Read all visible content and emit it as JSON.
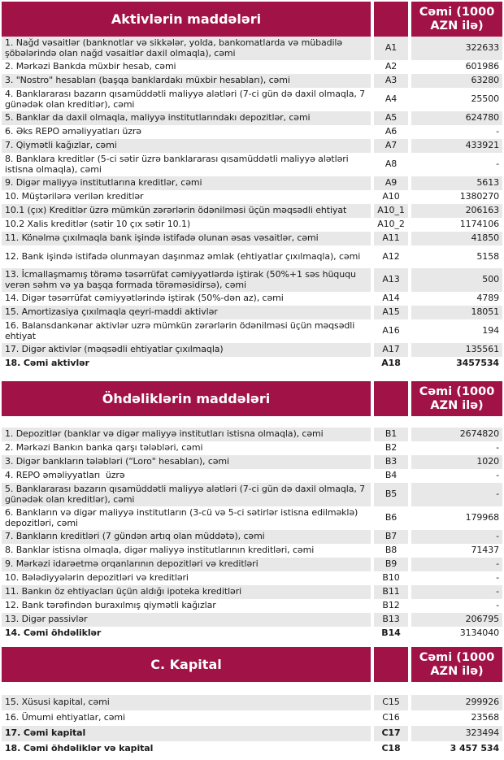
{
  "colors": {
    "header_bg": "#A11246",
    "stripe": "#E8E8E8",
    "header_text": "#FFFFFF"
  },
  "sections": [
    {
      "title": "Aktivlərin maddələri",
      "value_header": "Cəmi (1000 AZN ilə)",
      "rows": [
        {
          "label": "1. Nağd vəsaitlər (banknotlar və sikkələr, yolda, bankomatlarda və mübadilə şöbələrində olan nağd vəsaitlər daxil olmaqla), cəmi",
          "code": "A1",
          "value": "322633"
        },
        {
          "label": "2. Mərkəzi Bankda müxbir hesab, cəmi",
          "code": "A2",
          "value": "601986"
        },
        {
          "label": "3. \"Nostro\" hesabları (başqa banklardakı müxbir hesabları), cəmi",
          "code": "A3",
          "value": "63280"
        },
        {
          "label": "4. Banklararası bazarın qısamüddətli maliyyə alətləri (7-ci gün də daxil olmaqla, 7 günədək olan kreditlər), cəmi",
          "code": "A4",
          "value": "25500"
        },
        {
          "label": "5. Banklar da daxil olmaqla, maliyyə institutlarındakı depozitlər, cəmi",
          "code": "A5",
          "value": "624780"
        },
        {
          "label": "6. Əks REPO əməliyyatları üzrə",
          "code": "A6",
          "value": "-"
        },
        {
          "label": "7. Qiymətli kağızlar, cəmi",
          "code": "A7",
          "value": "433921"
        },
        {
          "label": "8. Banklara kreditlər (5-ci sətir üzrə banklararası qısamüddətli maliyyə alətləri istisna olmaqla), cəmi",
          "code": "A8",
          "value": "-"
        },
        {
          "label": "9. Digər maliyyə institutlarına kreditlər, cəmi",
          "code": "A9",
          "value": "5613"
        },
        {
          "label": "10. Müştərilərə verilən kreditlər",
          "code": "A10",
          "value": "1380270"
        },
        {
          "label": "10.1 (çıx) Kreditlər üzrə mümkün zərərlərin ödənilməsi üçün məqsədli ehtiyat",
          "code": "A10_1",
          "value": "206163"
        },
        {
          "label": "10.2 Xalis kreditlər (sətir 10 çıx sətir 10.1)",
          "code": "A10_2",
          "value": "1174106"
        },
        {
          "label": "11. Könəlmə çıxılmaqla bank işində istifadə olunan əsas vəsaitlər, cəmi",
          "code": "A11",
          "value": "41850"
        },
        {
          "label": "12. Bank işində istifadə olunmayan daşınmaz əmlak (ehtiyatlar çıxılmaqla), cəmi",
          "code": "A12",
          "value": "5158",
          "tall": true
        },
        {
          "label": "13. İcmallaşmamış törəmə təsərrüfat cəmiyyətlərdə iştirak (50%+1 səs hüququ verən səhm və ya başqa formada törəməsidirsə), cəmi",
          "code": "A13",
          "value": "500"
        },
        {
          "label": "14. Digər təsərrüfat cəmiyyətlərində iştirak (50%-dən az), cəmi",
          "code": "A14",
          "value": "4789"
        },
        {
          "label": "15. Amortizasiya çıxılmaqla qeyri-maddi aktivlər",
          "code": "A15",
          "value": "18051"
        },
        {
          "label": "16. Balansdankənar aktivlər uzrə mümkün zərərlərin ödənilməsi üçün məqsədli ehtiyat",
          "code": "A16",
          "value": "194",
          "tall": true
        },
        {
          "label": "17. Digər aktivlər (məqsədli ehtiyatlar çıxılmaqla)",
          "code": "A17",
          "value": "135561"
        },
        {
          "label": "18. Cəmi aktivlər",
          "code": "A18",
          "value": "3457534",
          "bold": true,
          "value_bold": true
        }
      ]
    },
    {
      "title": "Öhdəliklərin maddələri",
      "value_header": "Cəmi (1000 AZN ilə)",
      "rows": [
        {
          "label": "1. Depozitlər (banklar və digər maliyyə institutları istisna olmaqla), cəmi",
          "code": "B1",
          "value": "2674820"
        },
        {
          "label": "2. Mərkəzi Bankın banka qarşı tələbləri, cəmi",
          "code": "B2",
          "value": "-"
        },
        {
          "label": "3. Digər bankların tələbləri (“Loro\" hesabları), cəmi",
          "code": "B3",
          "value": "1020"
        },
        {
          "label": "4. REPO əməliyyatları  üzrə",
          "code": "B4",
          "value": "-"
        },
        {
          "label": "5. Banklararası bazarın qısamüddətli maliyyə alətləri (7-ci gün də daxil olmaqla, 7 günədək olan kreditlər), cəmi",
          "code": "B5",
          "value": "-"
        },
        {
          "label": "6. Bankların və digər maliyyə institutların (3-cü və 5-ci sətirlər istisna edilməklə) depozitləri, cəmi",
          "code": "B6",
          "value": "179968"
        },
        {
          "label": "7. Bankların kreditləri (7 gündən artıq olan müddətə), cəmi",
          "code": "B7",
          "value": "-"
        },
        {
          "label": "8. Banklar istisna olmaqla, digər maliyyə institutlarının kreditləri, cəmi",
          "code": "B8",
          "value": "71437"
        },
        {
          "label": "9. Mərkəzi idarəetmə orqanlarının depozitləri və kreditləri",
          "code": "B9",
          "value": "-"
        },
        {
          "label": "10. Bələdiyyələrin depozitləri və kreditləri",
          "code": "B10",
          "value": "-"
        },
        {
          "label": "11. Bankın öz ehtiyacları üçün aldığı ipoteka kreditləri",
          "code": "B11",
          "value": "-"
        },
        {
          "label": "12. Bank tərəfindən buraxılmış qiymətli kağızlar",
          "code": "B12",
          "value": "-"
        },
        {
          "label": "13. Digər passivlər",
          "code": "B13",
          "value": "206795"
        },
        {
          "label": "14. Cəmi öhdəliklər",
          "code": "B14",
          "value": "3134040",
          "bold": true,
          "value_bold": false
        }
      ]
    },
    {
      "title": "C. Kapital",
      "value_header": "Cəmi (1000 AZN ilə)",
      "rows": [
        {
          "label": "15. Xüsusi kapital, cəmi",
          "code": "C15",
          "value": "299926"
        },
        {
          "label": "16. Ümumi ehtiyatlar, cəmi",
          "code": "C16",
          "value": "23568"
        },
        {
          "label": "17. Cəmi kapital",
          "code": "C17",
          "value": "323494",
          "bold": true,
          "value_bold": false
        },
        {
          "label": "18. Cəmi öhdəliklər və kapital",
          "code": "C18",
          "value": "3 457 534",
          "bold": true,
          "value_bold": true
        }
      ]
    }
  ]
}
